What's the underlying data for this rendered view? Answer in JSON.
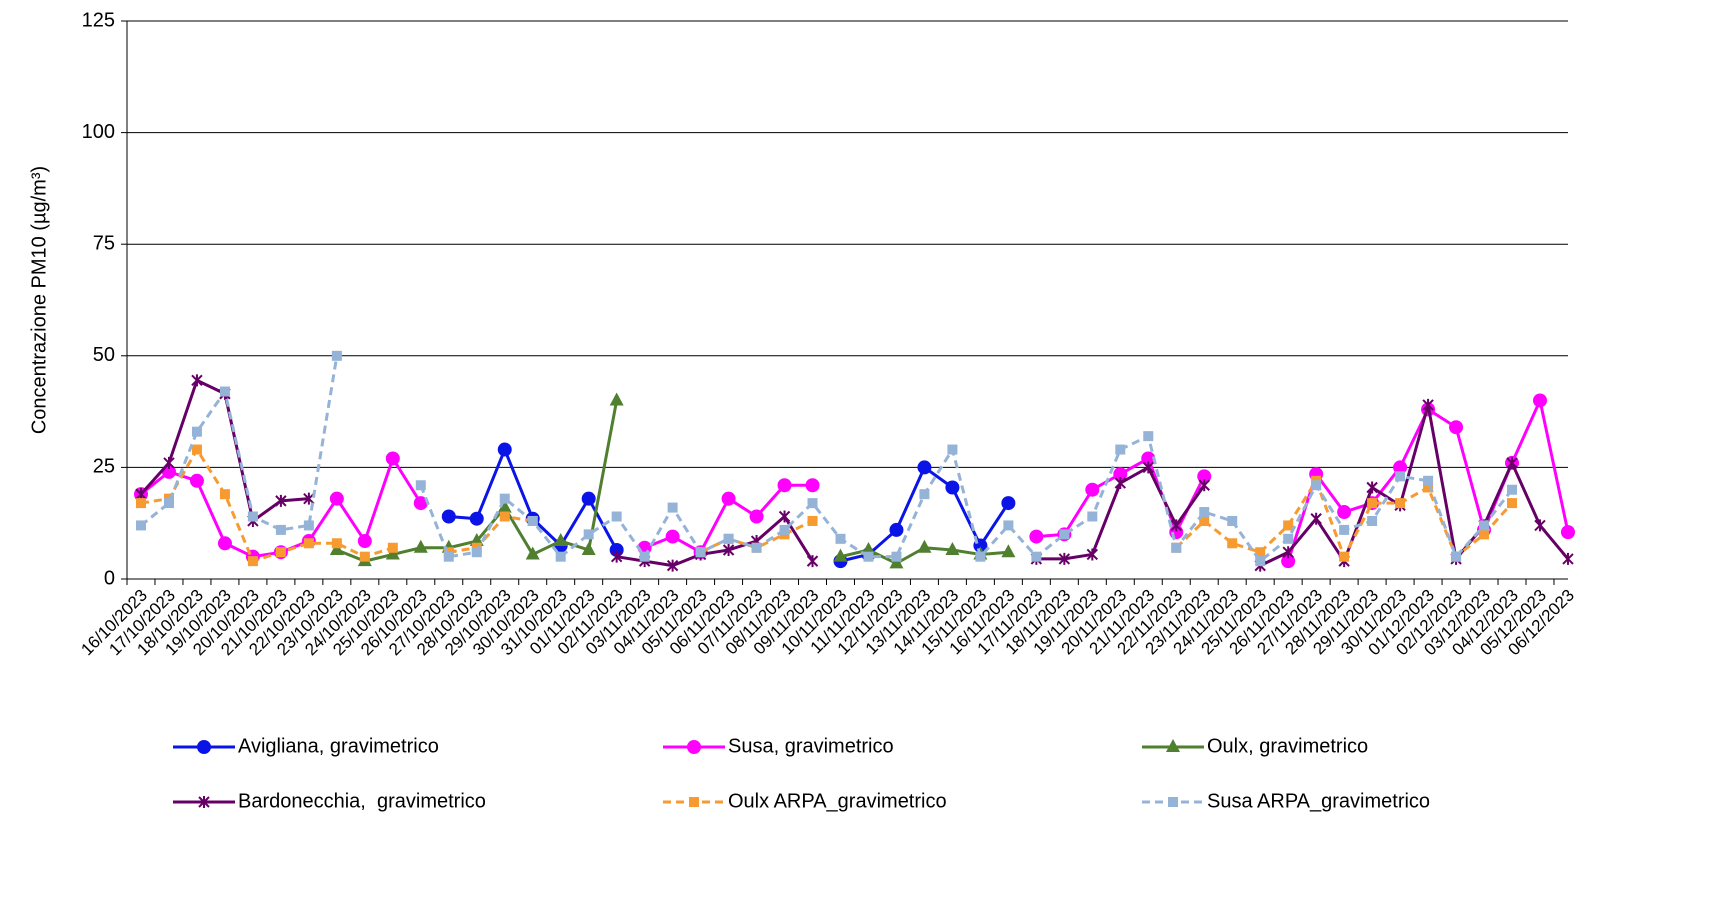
{
  "chart_data": {
    "type": "line",
    "y_label": "Concentrazione PM10 (µg/m³)",
    "categories": [
      "16/10/2023",
      "17/10/2023",
      "18/10/2023",
      "19/10/2023",
      "20/10/2023",
      "21/10/2023",
      "22/10/2023",
      "23/10/2023",
      "24/10/2023",
      "25/10/2023",
      "26/10/2023",
      "27/10/2023",
      "28/10/2023",
      "29/10/2023",
      "30/10/2023",
      "31/10/2023",
      "01/11/2023",
      "02/11/2023",
      "03/11/2023",
      "04/11/2023",
      "05/11/2023",
      "06/11/2023",
      "07/11/2023",
      "08/11/2023",
      "09/11/2023",
      "10/11/2023",
      "11/11/2023",
      "12/11/2023",
      "13/11/2023",
      "14/11/2023",
      "15/11/2023",
      "16/11/2023",
      "17/11/2023",
      "18/11/2023",
      "19/11/2023",
      "20/11/2023",
      "21/11/2023",
      "22/11/2023",
      "23/11/2023",
      "24/11/2023",
      "25/11/2023",
      "26/11/2023",
      "27/11/2023",
      "28/11/2023",
      "29/11/2023",
      "30/11/2023",
      "01/12/2023",
      "02/12/2023",
      "03/12/2023",
      "04/12/2023",
      "05/12/2023",
      "06/12/2023"
    ],
    "series": [
      {
        "name": "Avigliana, gravimetrico",
        "color": "#0a14e6",
        "marker": "circle",
        "dashed": false,
        "values": [
          null,
          null,
          null,
          null,
          null,
          null,
          null,
          null,
          null,
          null,
          null,
          14,
          13.5,
          29,
          13.5,
          7.5,
          18,
          6.5,
          null,
          null,
          null,
          null,
          null,
          null,
          null,
          4,
          5.5,
          11,
          25,
          20.5,
          7.5,
          17,
          null,
          null,
          null,
          null,
          null,
          null,
          null,
          null,
          null,
          null,
          null,
          null,
          null,
          null,
          null,
          null,
          null,
          null,
          null,
          null
        ]
      },
      {
        "name": "Susa, gravimetrico",
        "color": "#ff00ff",
        "marker": "circle",
        "dashed": false,
        "values": [
          19,
          24,
          22,
          8,
          5,
          6,
          8.5,
          18,
          8.5,
          27,
          17,
          null,
          null,
          null,
          null,
          null,
          null,
          null,
          7,
          9.5,
          6,
          18,
          14,
          21,
          21,
          null,
          null,
          null,
          null,
          null,
          null,
          null,
          9.5,
          10,
          20,
          23.5,
          27,
          10.5,
          23,
          null,
          null,
          4,
          23.5,
          15,
          17,
          25,
          38,
          34,
          11,
          26,
          40,
          10.5
        ]
      },
      {
        "name": "Oulx, gravimetrico",
        "color": "#4f7f2f",
        "marker": "triangle",
        "dashed": false,
        "values": [
          null,
          null,
          null,
          null,
          null,
          null,
          null,
          6.5,
          4,
          5.5,
          7,
          7,
          8.5,
          16,
          5.5,
          8.5,
          6.5,
          40,
          null,
          null,
          null,
          null,
          null,
          null,
          null,
          5,
          6.5,
          3.5,
          7,
          6.5,
          5.5,
          6,
          null,
          null,
          null,
          null,
          null,
          null,
          null,
          null,
          null,
          null,
          null,
          null,
          null,
          null,
          null,
          null,
          null,
          null,
          null,
          null
        ]
      },
      {
        "name": "Bardonecchia,  gravimetrico",
        "color": "#660066",
        "marker": "star",
        "dashed": false,
        "values": [
          19,
          26,
          44.5,
          41.5,
          13,
          17.5,
          18,
          null,
          null,
          null,
          null,
          null,
          null,
          null,
          null,
          null,
          null,
          5,
          4,
          3,
          5.5,
          6.5,
          8.5,
          14,
          4,
          null,
          null,
          null,
          null,
          null,
          null,
          null,
          4.5,
          4.5,
          5.5,
          21.5,
          25,
          12,
          21,
          null,
          3,
          6,
          13.5,
          4,
          20.5,
          16.5,
          39,
          4.5,
          12,
          26,
          12,
          4.5
        ]
      },
      {
        "name": "Oulx ARPA_gravimetrico",
        "color": "#f79a30",
        "marker": "square",
        "dashed": true,
        "values": [
          17,
          18,
          29,
          19,
          4,
          6,
          8,
          8,
          5,
          7,
          null,
          6,
          7,
          14,
          13,
          null,
          null,
          null,
          null,
          null,
          6,
          9,
          7,
          10,
          13,
          null,
          null,
          null,
          null,
          null,
          null,
          null,
          null,
          null,
          null,
          null,
          null,
          7,
          13,
          8,
          6,
          12,
          22,
          5,
          17,
          17,
          20.5,
          5,
          10,
          17,
          null,
          null
        ]
      },
      {
        "name": "Susa ARPA_gravimetrico",
        "color": "#95b3d7",
        "marker": "square",
        "dashed": true,
        "values": [
          12,
          17,
          33,
          42,
          14,
          11,
          12,
          50,
          null,
          null,
          21,
          5,
          6,
          18,
          13,
          5,
          10,
          14,
          5,
          16,
          6,
          9,
          7,
          11,
          17,
          9,
          5,
          5,
          19,
          29,
          5,
          12,
          5,
          10,
          14,
          29,
          32,
          7,
          15,
          13,
          4,
          9,
          21,
          11,
          13,
          23,
          22,
          5,
          12,
          20,
          null,
          null
        ]
      }
    ],
    "ylim": [
      0,
      125
    ],
    "yticks": [
      0,
      25,
      50,
      75,
      100,
      125
    ],
    "grid": true,
    "legend": "bottom"
  }
}
